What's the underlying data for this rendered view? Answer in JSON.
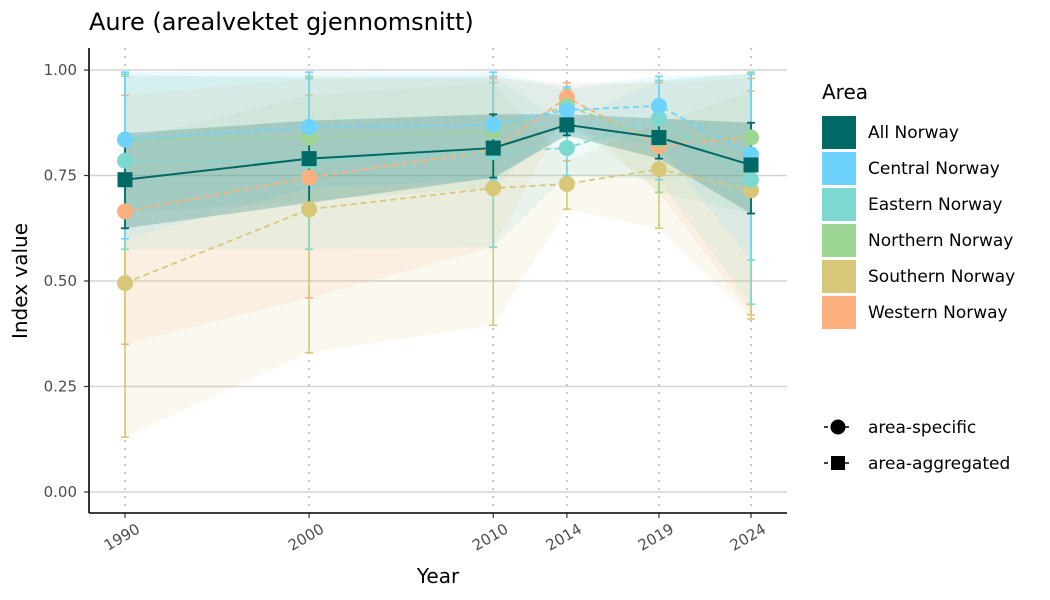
{
  "chart_data": {
    "type": "line",
    "title": "Aure (arealvektet gjennomsnitt)",
    "xlabel": "Year",
    "ylabel": "Index value",
    "x": [
      1990,
      2000,
      2010,
      2014,
      2019,
      2024
    ],
    "xlim": [
      1990,
      2024
    ],
    "ylim": [
      0,
      1
    ],
    "yticks": [
      0.0,
      0.25,
      0.5,
      0.75,
      1.0
    ],
    "ytick_labels": [
      "0.00",
      "0.25",
      "0.50",
      "0.75",
      "1.00"
    ],
    "xtick_labels": [
      "1990",
      "2000",
      "2010",
      "2014",
      "2019",
      "2024"
    ],
    "grid": "horizontal major lines; dotted vertical lines at survey years",
    "legend_placement": "right",
    "legend_title": "Area",
    "series": [
      {
        "name": "Western Norway",
        "color": "#FDB07D",
        "marker": "circle",
        "line": "dashed",
        "values": [
          0.665,
          0.745,
          0.81,
          0.935,
          0.82,
          0.84
        ],
        "lower": [
          0.35,
          0.46,
          0.58,
          0.9,
          0.71,
          0.42
        ],
        "upper": [
          0.94,
          0.98,
          0.98,
          0.97,
          0.97,
          0.98
        ]
      },
      {
        "name": "Southern Norway",
        "color": "#D8C778",
        "marker": "circle",
        "line": "dashed",
        "values": [
          0.495,
          0.67,
          0.72,
          0.73,
          0.765,
          0.715
        ],
        "lower": [
          0.13,
          0.33,
          0.395,
          0.67,
          0.625,
          0.41
        ],
        "upper": [
          0.835,
          0.94,
          0.97,
          0.785,
          0.875,
          0.95
        ]
      },
      {
        "name": "Northern Norway",
        "color": "#9CD594",
        "marker": "circle",
        "line": "dashed",
        "values": [
          0.835,
          0.84,
          0.855,
          0.915,
          0.835,
          0.84
        ],
        "lower": [
          0.66,
          0.69,
          0.72,
          0.88,
          0.71,
          0.66
        ],
        "upper": [
          0.985,
          0.985,
          0.985,
          0.955,
          0.975,
          0.995
        ]
      },
      {
        "name": "Eastern Norway",
        "color": "#7DD8CF",
        "marker": "circle",
        "line": "dashed",
        "values": [
          0.785,
          0.785,
          0.805,
          0.815,
          0.885,
          0.74
        ],
        "lower": [
          0.575,
          0.575,
          0.58,
          0.75,
          0.74,
          0.445
        ],
        "upper": [
          0.99,
          0.98,
          0.985,
          0.875,
          0.975,
          0.99
        ]
      },
      {
        "name": "Central Norway",
        "color": "#6ED3FC",
        "marker": "circle",
        "line": "dashed",
        "values": [
          0.835,
          0.865,
          0.87,
          0.905,
          0.915,
          0.8
        ],
        "lower": [
          0.6,
          0.72,
          0.74,
          0.85,
          0.82,
          0.55
        ],
        "upper": [
          0.995,
          0.995,
          0.995,
          0.96,
          0.985,
          0.99
        ]
      },
      {
        "name": "All Norway",
        "color": "#006965",
        "marker": "square",
        "line": "solid",
        "values": [
          0.74,
          0.79,
          0.815,
          0.87,
          0.84,
          0.775
        ],
        "lower": [
          0.625,
          0.685,
          0.745,
          0.845,
          0.79,
          0.66
        ],
        "upper": [
          0.85,
          0.88,
          0.895,
          0.895,
          0.885,
          0.875
        ]
      }
    ],
    "legend_areas": [
      {
        "name": "All Norway",
        "color": "#006965"
      },
      {
        "name": "Central Norway",
        "color": "#6ED3FC"
      },
      {
        "name": "Eastern Norway",
        "color": "#7DD8CF"
      },
      {
        "name": "Northern Norway",
        "color": "#9CD594"
      },
      {
        "name": "Southern Norway",
        "color": "#D8C778"
      },
      {
        "name": "Western Norway",
        "color": "#FDB07D"
      }
    ],
    "legend_shapes": [
      {
        "label": "area-specific",
        "shape": "circle"
      },
      {
        "label": "area-aggregated",
        "shape": "square"
      }
    ]
  }
}
